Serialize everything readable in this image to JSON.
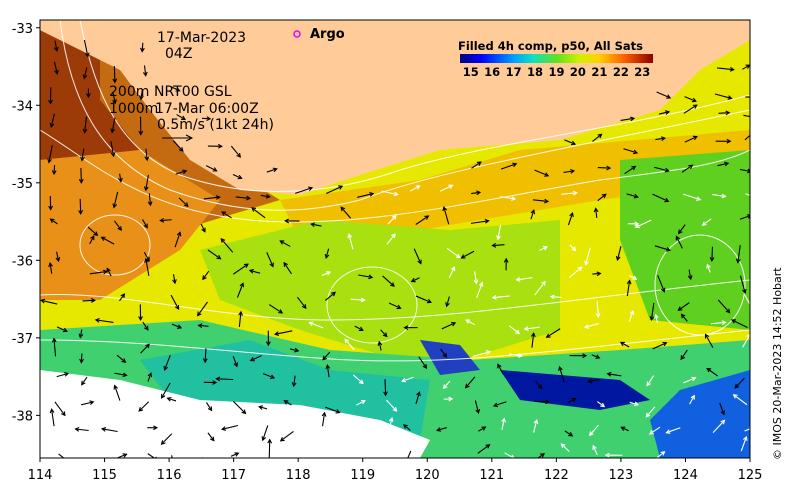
{
  "map": {
    "date": "17-Mar-2023",
    "time": "04Z",
    "legend_point": "Argo",
    "depth_top": "200m",
    "depth_bottom": "1000m",
    "product": "NRT00 GSL",
    "product_time": "17-Mar 06:00Z",
    "current_scale": "0.5m/s (1kt 24h)",
    "colorbar_title": "Filled 4h comp, p50, All Sats",
    "colorbar_ticks": [
      "15",
      "16",
      "17",
      "18",
      "19",
      "20",
      "21",
      "22",
      "23"
    ],
    "colorbar_range": [
      14.5,
      23.5
    ],
    "credit": "© IMOS 20-Mar-2023 14:52 Hobart",
    "x_ticks": [
      "114",
      "115",
      "116",
      "117",
      "118",
      "119",
      "120",
      "121",
      "122",
      "123",
      "124",
      "125"
    ],
    "y_ticks": [
      "-33",
      "-34",
      "-35",
      "-36",
      "-37",
      "-38"
    ],
    "lon_range": [
      114,
      125
    ],
    "lat_range": [
      -38.55,
      -32.9
    ],
    "colors": {
      "land": "#ffcc99",
      "cloud": "#ffffff",
      "argo_marker": "#ee00ee",
      "vectors": "#000000",
      "contours": "#ffffff"
    }
  }
}
